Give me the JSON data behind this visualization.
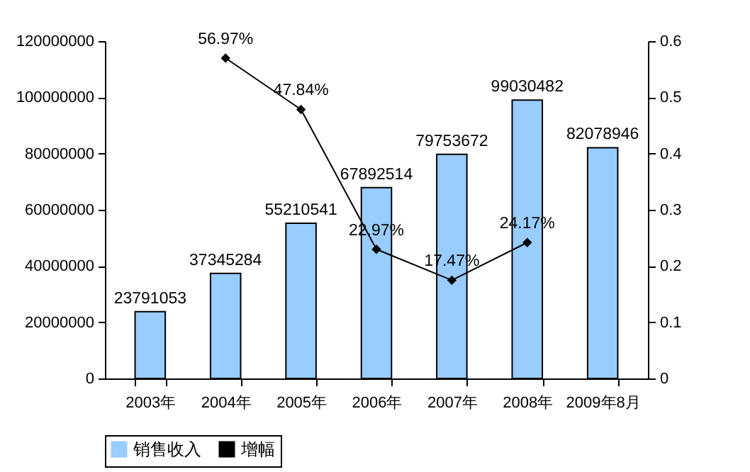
{
  "chart_data": {
    "type": "bar",
    "categories": [
      "2003年",
      "2004年",
      "2005年",
      "2006年",
      "2007年",
      "2008年",
      "2009年8月"
    ],
    "series": [
      {
        "name": "销售收入",
        "color": "#99ccff",
        "values": [
          23791053,
          37345284,
          55210541,
          67892514,
          79753672,
          99030482,
          82078946
        ]
      },
      {
        "name": "增幅",
        "type": "line",
        "axis": "y2",
        "color": "#000000",
        "marker": "diamond",
        "values": [
          null,
          0.5697,
          0.4784,
          0.2297,
          0.1747,
          0.2417,
          null
        ],
        "value_labels": [
          null,
          "56.97%",
          "47.84%",
          "22.97%",
          "17.47%",
          "24.17%",
          null
        ]
      }
    ],
    "data_labels": true,
    "ylim": [
      0,
      120000000
    ],
    "yticks": [
      0,
      20000000,
      40000000,
      60000000,
      80000000,
      100000000,
      120000000
    ],
    "y2lim": [
      0,
      0.6
    ],
    "y2ticks": [
      0,
      0.1,
      0.2,
      0.3,
      0.4,
      0.5,
      0.6
    ],
    "grid": false,
    "legend": "bottom"
  }
}
